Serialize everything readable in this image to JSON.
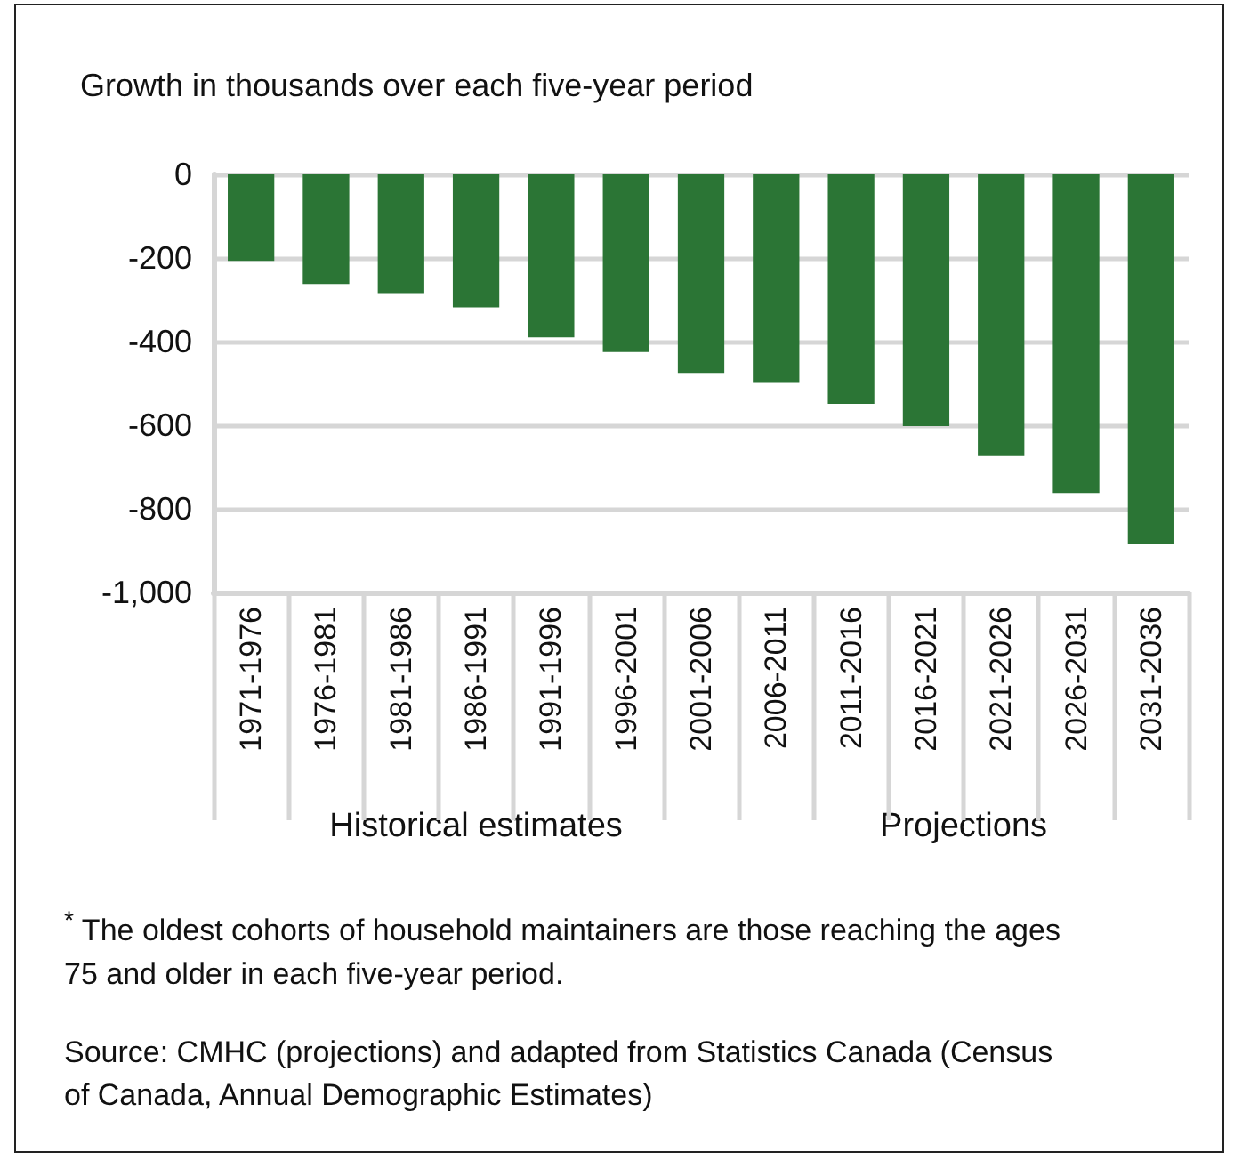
{
  "chart_data": {
    "type": "bar",
    "title": "Growth in thousands over each five-year period",
    "categories": [
      "1971-1976",
      "1976-1981",
      "1981-1986",
      "1986-1991",
      "1991-1996",
      "1996-2001",
      "2001-2006",
      "2006-2011",
      "2011-2016",
      "2016-2021",
      "2021-2026",
      "2026-2031",
      "2031-2036"
    ],
    "values": [
      -207,
      -262,
      -284,
      -318,
      -390,
      -425,
      -475,
      -497,
      -549,
      -602,
      -674,
      -762,
      -884
    ],
    "color": "#2b7535",
    "ylim": [
      -1000,
      0
    ],
    "yticks": [
      {
        "value": -1000,
        "label": "-1,000"
      },
      -800,
      -600,
      -400,
      -200,
      0
    ],
    "grid": "y",
    "annotations": [
      "Historical estimates",
      "Projections",
      "$^{*}$ The oldest cohorts of household maintainers are those reaching the ages 75 and older in each five-year period.",
      "Source: CMHC (projections) and adapted from Statistics Canada (Census of Canada, Annual Demographic Estimates)"
    ]
  }
}
